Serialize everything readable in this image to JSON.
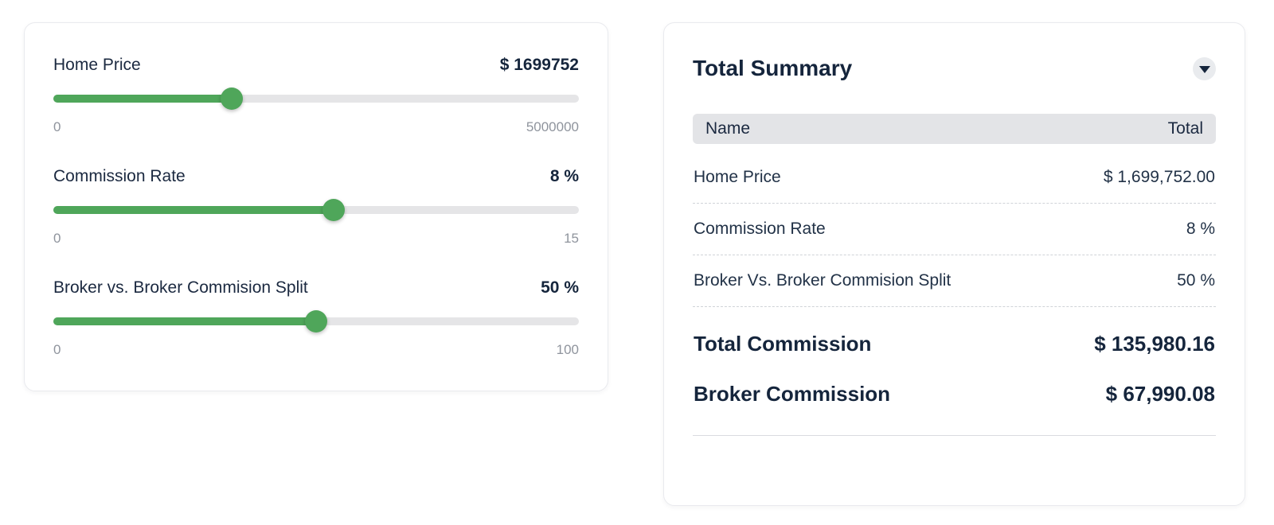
{
  "colors": {
    "accent_green": "#4fa65a",
    "track_gray": "#e5e5e7",
    "text_dark": "#15253c",
    "muted_gray": "#8f949d",
    "table_header_bg": "#e3e4e7"
  },
  "calculator": {
    "sliders": [
      {
        "label": "Home Price",
        "value_display": "$ 1699752",
        "value": 1699752,
        "min": 0,
        "max": 5000000,
        "min_label": "0",
        "max_label": "5000000",
        "percent": 34
      },
      {
        "label": "Commission Rate",
        "value_display": "8 %",
        "value": 8,
        "min": 0,
        "max": 15,
        "min_label": "0",
        "max_label": "15",
        "percent": 53.3
      },
      {
        "label": "Broker vs. Broker Commision Split",
        "value_display": "50 %",
        "value": 50,
        "min": 0,
        "max": 100,
        "min_label": "0",
        "max_label": "100",
        "percent": 50
      }
    ]
  },
  "summary": {
    "title": "Total Summary",
    "collapse_icon": "chevron-down-icon",
    "header": {
      "name": "Name",
      "total": "Total"
    },
    "rows": [
      {
        "name": "Home Price",
        "total": "$ 1,699,752.00"
      },
      {
        "name": "Commission Rate",
        "total": "8 %"
      },
      {
        "name": "Broker Vs. Broker Commision Split",
        "total": "50 %"
      }
    ],
    "totals": [
      {
        "name": "Total Commission",
        "total": "$ 135,980.16"
      },
      {
        "name": "Broker Commission",
        "total": "$ 67,990.08"
      }
    ]
  }
}
